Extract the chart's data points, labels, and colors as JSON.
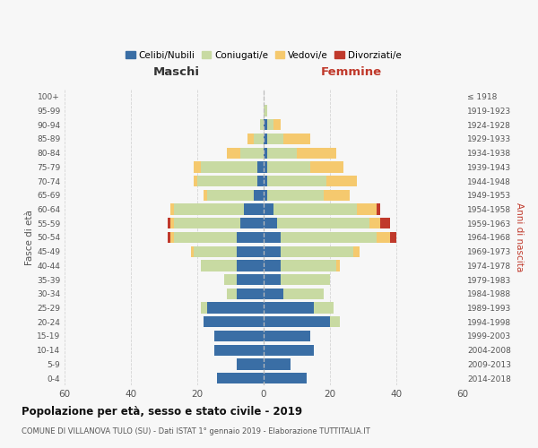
{
  "age_groups": [
    "0-4",
    "5-9",
    "10-14",
    "15-19",
    "20-24",
    "25-29",
    "30-34",
    "35-39",
    "40-44",
    "45-49",
    "50-54",
    "55-59",
    "60-64",
    "65-69",
    "70-74",
    "75-79",
    "80-84",
    "85-89",
    "90-94",
    "95-99",
    "100+"
  ],
  "birth_years": [
    "2014-2018",
    "2009-2013",
    "2004-2008",
    "1999-2003",
    "1994-1998",
    "1989-1993",
    "1984-1988",
    "1979-1983",
    "1974-1978",
    "1969-1973",
    "1964-1968",
    "1959-1963",
    "1954-1958",
    "1949-1953",
    "1944-1948",
    "1939-1943",
    "1934-1938",
    "1929-1933",
    "1924-1928",
    "1919-1923",
    "≤ 1918"
  ],
  "males": {
    "celibe": [
      14,
      8,
      15,
      15,
      18,
      17,
      8,
      8,
      8,
      8,
      8,
      7,
      6,
      3,
      2,
      2,
      0,
      0,
      0,
      0,
      0
    ],
    "coniugato": [
      0,
      0,
      0,
      0,
      0,
      2,
      3,
      4,
      11,
      13,
      19,
      20,
      21,
      14,
      18,
      17,
      7,
      3,
      1,
      0,
      0
    ],
    "vedovo": [
      0,
      0,
      0,
      0,
      0,
      0,
      0,
      0,
      0,
      1,
      1,
      1,
      1,
      1,
      1,
      2,
      4,
      2,
      0,
      0,
      0
    ],
    "divorziato": [
      0,
      0,
      0,
      0,
      0,
      0,
      0,
      0,
      0,
      0,
      1,
      1,
      0,
      0,
      0,
      0,
      0,
      0,
      0,
      0,
      0
    ]
  },
  "females": {
    "nubile": [
      13,
      8,
      15,
      14,
      20,
      15,
      6,
      5,
      5,
      5,
      5,
      4,
      3,
      1,
      1,
      1,
      1,
      1,
      1,
      0,
      0
    ],
    "coniugata": [
      0,
      0,
      0,
      0,
      3,
      6,
      12,
      15,
      17,
      22,
      29,
      28,
      25,
      17,
      18,
      13,
      9,
      5,
      2,
      1,
      0
    ],
    "vedova": [
      0,
      0,
      0,
      0,
      0,
      0,
      0,
      0,
      1,
      2,
      4,
      3,
      6,
      8,
      9,
      10,
      12,
      8,
      2,
      0,
      0
    ],
    "divorziata": [
      0,
      0,
      0,
      0,
      0,
      0,
      0,
      0,
      0,
      0,
      2,
      3,
      1,
      0,
      0,
      0,
      0,
      0,
      0,
      0,
      0
    ]
  },
  "colors": {
    "celibe": "#3a6ea5",
    "coniugato": "#c8daa2",
    "vedovo": "#f5c96e",
    "divorziato": "#c0392b"
  },
  "title": "Popolazione per età, sesso e stato civile - 2019",
  "subtitle": "COMUNE DI VILLANOVA TULO (SU) - Dati ISTAT 1° gennaio 2019 - Elaborazione TUTTITALIA.IT",
  "xlabel_left": "Maschi",
  "xlabel_right": "Femmine",
  "ylabel_left": "Fasce di età",
  "ylabel_right": "Anni di nascita",
  "xlim": 60,
  "legend_labels": [
    "Celibi/Nubili",
    "Coniugati/e",
    "Vedovi/e",
    "Divorziati/e"
  ],
  "background_color": "#f7f7f7"
}
